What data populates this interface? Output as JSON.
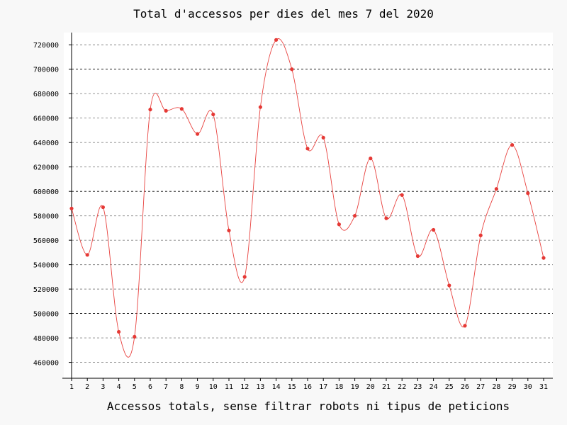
{
  "chart_data": {
    "type": "line",
    "title": "Total d'accessos per dies del mes 7 del 2020",
    "xlabel": "Accessos totals, sense filtrar robots ni tipus de peticions",
    "ylabel": "",
    "x": [
      1,
      2,
      3,
      4,
      5,
      6,
      7,
      8,
      9,
      10,
      11,
      12,
      13,
      14,
      15,
      16,
      17,
      18,
      19,
      20,
      21,
      22,
      23,
      24,
      25,
      26,
      27,
      28,
      29,
      30,
      31
    ],
    "series": [
      {
        "values": [
          586000,
          548000,
          587000,
          485000,
          481000,
          667000,
          666000,
          667500,
          647000,
          663000,
          568000,
          530000,
          669000,
          724000,
          700000,
          635000,
          644000,
          573000,
          580000,
          627000,
          578000,
          597000,
          547000,
          568500,
          523000,
          490000,
          564000,
          602000,
          638000,
          598500,
          545500
        ]
      }
    ],
    "yticks": [
      460000,
      480000,
      500000,
      520000,
      540000,
      560000,
      580000,
      600000,
      620000,
      640000,
      660000,
      680000,
      700000,
      720000
    ],
    "ylim": [
      447000,
      730000
    ],
    "grid": true,
    "colors": {
      "line": "#e8423f",
      "point": "#e53935",
      "grid": "#888888",
      "major_grid": "#000000",
      "plot_bg": "#ffffff",
      "page_bg": "#f8f8f8"
    }
  }
}
